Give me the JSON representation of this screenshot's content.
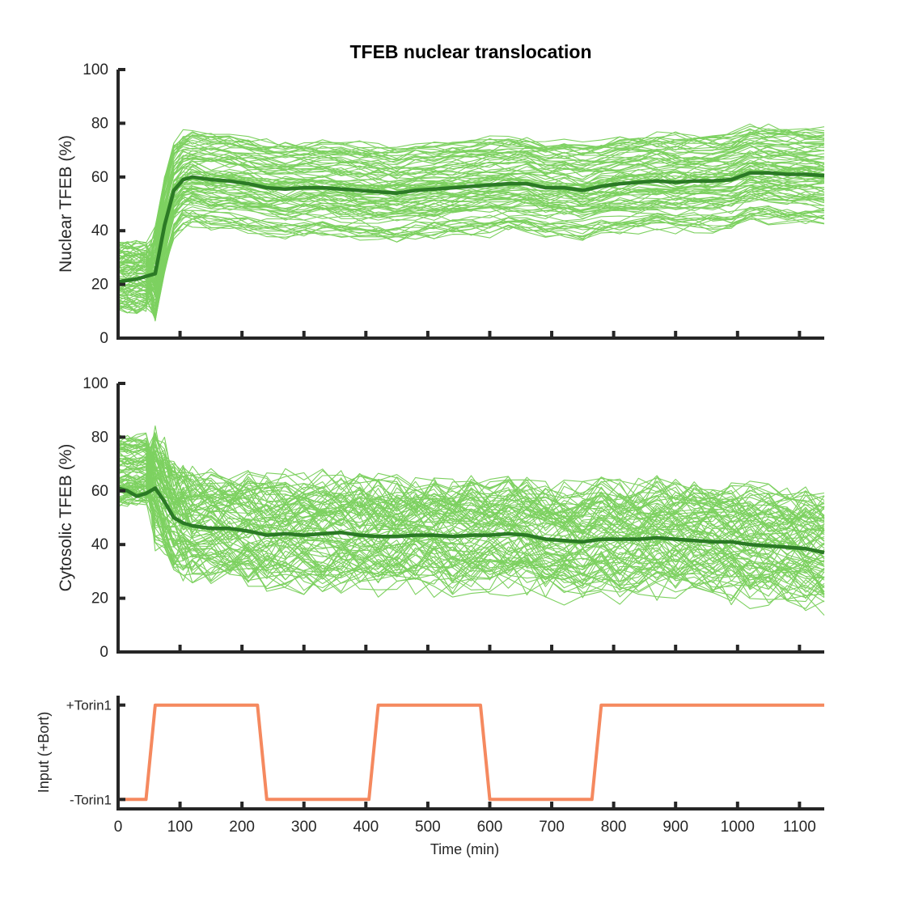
{
  "figure": {
    "title": "TFEB nuclear translocation"
  },
  "chart_data": [
    {
      "id": "nuclear",
      "type": "line",
      "title": "TFEB nuclear translocation",
      "ylabel": "Nuclear TFEB (%)",
      "xlabel": "",
      "xlim": [
        0,
        1140
      ],
      "ylim": [
        0,
        100
      ],
      "yticks": [
        0,
        20,
        40,
        60,
        80,
        100
      ],
      "xticks": [
        0,
        100,
        200,
        300,
        400,
        500,
        600,
        700,
        800,
        900,
        1000,
        1100
      ],
      "xtick_labels_visible": false,
      "grid": false,
      "series": [
        {
          "role": "mean",
          "color": "#2b7a25",
          "x": [
            0,
            15,
            30,
            45,
            60,
            75,
            90,
            105,
            120,
            150,
            180,
            210,
            240,
            270,
            300,
            330,
            360,
            390,
            420,
            450,
            480,
            510,
            540,
            570,
            600,
            630,
            660,
            690,
            720,
            750,
            780,
            810,
            840,
            870,
            900,
            930,
            960,
            990,
            1020,
            1050,
            1080,
            1110,
            1140
          ],
          "y": [
            21,
            21.5,
            22,
            23,
            24,
            42,
            55,
            59,
            60,
            59,
            58.5,
            57.5,
            56,
            55.5,
            56,
            56,
            55.5,
            55,
            54.5,
            54,
            55,
            55.5,
            56,
            56.5,
            57,
            57.5,
            57.5,
            56,
            56,
            55,
            56.5,
            57.5,
            58,
            58.5,
            58,
            58.5,
            58.5,
            59,
            61.5,
            61.5,
            61,
            61,
            60.5
          ]
        }
      ],
      "individual_traces": {
        "color": "#7dd160",
        "count": 90,
        "baseline_range": [
          10,
          35
        ],
        "plateau_range": [
          30,
          95
        ],
        "on_time": 60
      }
    },
    {
      "id": "cytosolic",
      "type": "line",
      "ylabel": "Cytosolic TFEB (%)",
      "xlabel": "",
      "xlim": [
        0,
        1140
      ],
      "ylim": [
        0,
        100
      ],
      "yticks": [
        0,
        20,
        40,
        60,
        80,
        100
      ],
      "xticks": [
        0,
        100,
        200,
        300,
        400,
        500,
        600,
        700,
        800,
        900,
        1000,
        1100
      ],
      "xtick_labels_visible": false,
      "grid": false,
      "series": [
        {
          "role": "mean",
          "color": "#2b7a25",
          "x": [
            0,
            15,
            30,
            45,
            60,
            75,
            90,
            105,
            120,
            150,
            180,
            210,
            240,
            270,
            300,
            330,
            360,
            390,
            420,
            450,
            480,
            510,
            540,
            570,
            600,
            630,
            660,
            690,
            720,
            750,
            780,
            810,
            840,
            870,
            900,
            930,
            960,
            990,
            1020,
            1050,
            1080,
            1110,
            1140
          ],
          "y": [
            61,
            60,
            58,
            59,
            61,
            56,
            50,
            48,
            47,
            46,
            46,
            45,
            43.5,
            44,
            43.5,
            44,
            44.5,
            43.5,
            43,
            43,
            43.5,
            43.5,
            43,
            43.5,
            43.5,
            44,
            43.5,
            42,
            41.5,
            41,
            42,
            42,
            42,
            42.5,
            42,
            41.5,
            41,
            41,
            40,
            39.5,
            39,
            38.5,
            37
          ]
        }
      ],
      "individual_traces": {
        "color": "#7dd160",
        "count": 90,
        "baseline_range": [
          55,
          80
        ],
        "plateau_range": [
          5,
          70
        ],
        "on_time": 60
      }
    },
    {
      "id": "input",
      "type": "line",
      "ylabel": "Input (+Bort)",
      "xlabel": "Time (min)",
      "xlim": [
        0,
        1140
      ],
      "ylim": [
        -0.1,
        1.1
      ],
      "yticks": [
        0,
        1
      ],
      "ytick_labels": [
        "-Torin1",
        "+Torin1"
      ],
      "xticks": [
        0,
        100,
        200,
        300,
        400,
        500,
        600,
        700,
        800,
        900,
        1000,
        1100
      ],
      "xtick_labels": [
        "0",
        "100",
        "200",
        "300",
        "400",
        "500",
        "600",
        "700",
        "800",
        "900",
        "1000",
        "1100"
      ],
      "grid": false,
      "series": [
        {
          "role": "input",
          "color": "#f5895f",
          "x": [
            0,
            45,
            60,
            225,
            240,
            405,
            420,
            585,
            600,
            765,
            780,
            1140
          ],
          "y": [
            0,
            0,
            1,
            1,
            0,
            0,
            1,
            1,
            0,
            0,
            1,
            1
          ]
        }
      ]
    }
  ]
}
